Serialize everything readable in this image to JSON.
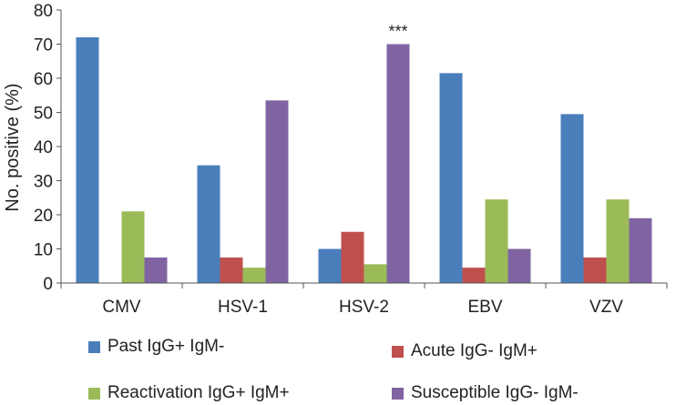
{
  "chart_data": {
    "type": "bar",
    "title": "",
    "xlabel": "",
    "ylabel": "No. positive (%)",
    "ylim": [
      0,
      80
    ],
    "yticks": [
      0,
      10,
      20,
      30,
      40,
      50,
      60,
      70,
      80
    ],
    "grid": false,
    "legend_position": "bottom",
    "categories": [
      "CMV",
      "HSV-1",
      "HSV-2",
      "EBV",
      "VZV"
    ],
    "series": [
      {
        "name": "Past IgG+ IgM-",
        "color": "#4a7ebb",
        "values": [
          72,
          34.5,
          10,
          61.5,
          49.5
        ]
      },
      {
        "name": "Acute IgG- IgM+",
        "color": "#c0504d",
        "values": [
          0,
          7.5,
          15,
          4.5,
          7.5
        ]
      },
      {
        "name": "Reactivation IgG+ IgM+",
        "color": "#9bbb59",
        "values": [
          21,
          4.5,
          5.5,
          24.5,
          24.5
        ]
      },
      {
        "name": "Susceptible IgG- IgM-",
        "color": "#8064a2",
        "values": [
          7.5,
          53.5,
          70,
          10,
          19
        ]
      }
    ],
    "annotations": [
      {
        "text": "***",
        "category": "HSV-2",
        "series": 3
      }
    ]
  }
}
